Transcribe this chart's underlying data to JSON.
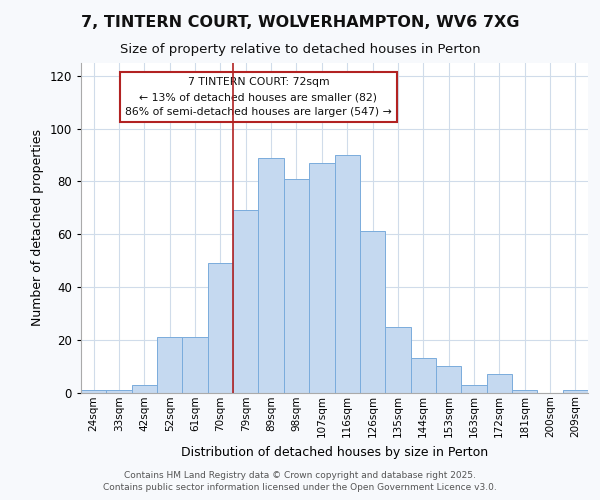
{
  "title_line1": "7, TINTERN COURT, WOLVERHAMPTON, WV6 7XG",
  "title_line2": "Size of property relative to detached houses in Perton",
  "xlabel": "Distribution of detached houses by size in Perton",
  "ylabel": "Number of detached properties",
  "categories": [
    "24sqm",
    "33sqm",
    "42sqm",
    "52sqm",
    "61sqm",
    "70sqm",
    "79sqm",
    "89sqm",
    "98sqm",
    "107sqm",
    "116sqm",
    "126sqm",
    "135sqm",
    "144sqm",
    "153sqm",
    "163sqm",
    "172sqm",
    "181sqm",
    "200sqm",
    "209sqm"
  ],
  "values": [
    1,
    1,
    3,
    21,
    21,
    49,
    69,
    89,
    81,
    87,
    90,
    61,
    25,
    13,
    10,
    3,
    7,
    1,
    0,
    1
  ],
  "bar_color": "#c5d9f0",
  "bar_edge_color": "#7aacdc",
  "vline_x_index": 5,
  "vline_color": "#b22222",
  "annotation_text_line1": "7 TINTERN COURT: 72sqm",
  "annotation_text_line2": "← 13% of detached houses are smaller (82)",
  "annotation_text_line3": "86% of semi-detached houses are larger (547) →",
  "annotation_box_color": "#b22222",
  "ylim": [
    0,
    125
  ],
  "yticks": [
    0,
    20,
    40,
    60,
    80,
    100,
    120
  ],
  "footer_line1": "Contains HM Land Registry data © Crown copyright and database right 2025.",
  "footer_line2": "Contains public sector information licensed under the Open Government Licence v3.0.",
  "bg_color": "#f7f9fc",
  "plot_bg_color": "#ffffff",
  "grid_color": "#d0dcea"
}
